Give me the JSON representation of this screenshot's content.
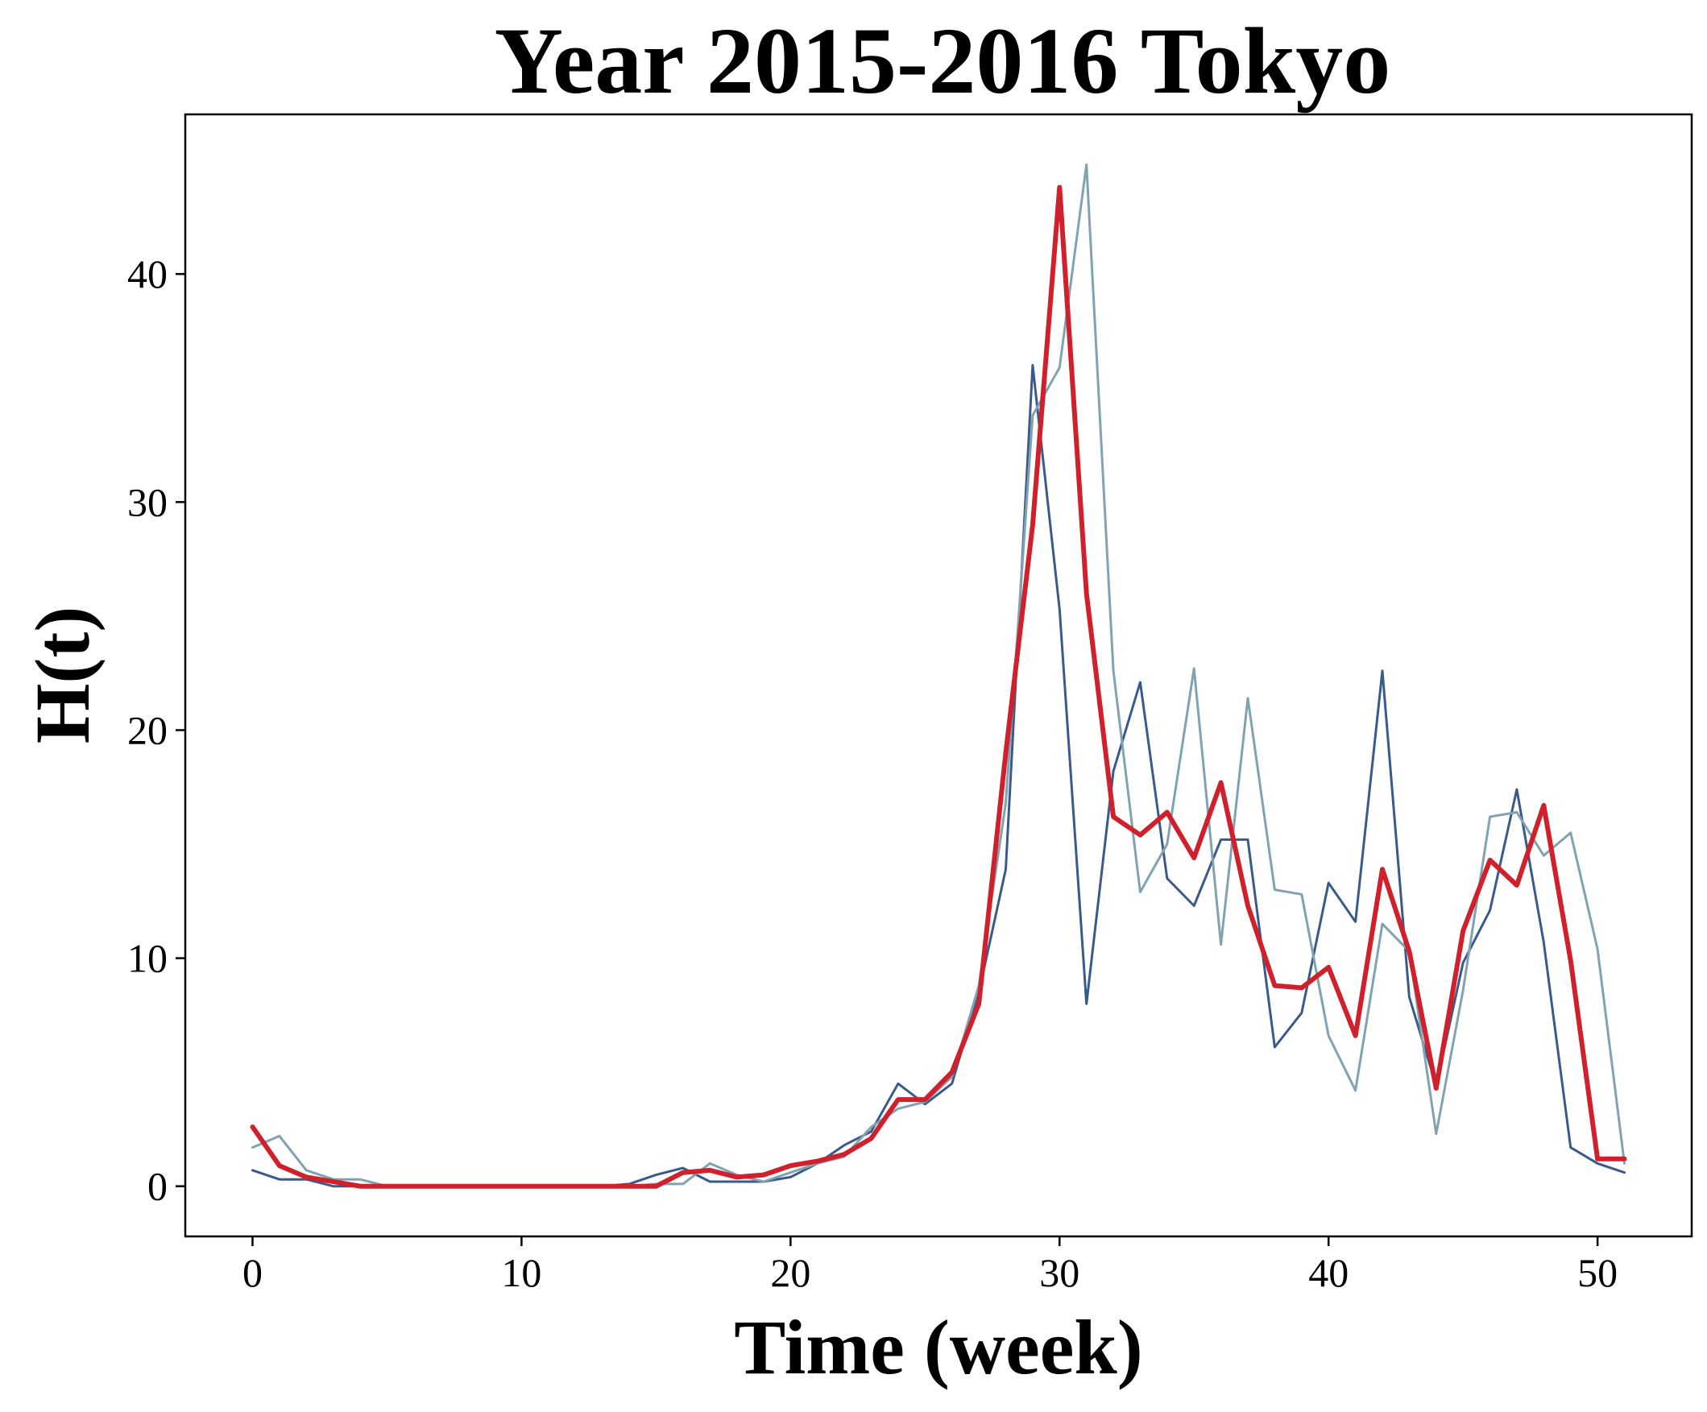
{
  "chart_data": {
    "type": "line",
    "title": "Year 2015-2016 Tokyo",
    "xlabel": "Time (week)",
    "ylabel": "H(t)",
    "xlim": [
      -2.5,
      53.5
    ],
    "ylim": [
      -2.2,
      47
    ],
    "xticks": [
      0,
      10,
      20,
      30,
      40,
      50
    ],
    "yticks": [
      0,
      10,
      20,
      30,
      40
    ],
    "grid": false,
    "x": [
      0,
      1,
      2,
      3,
      4,
      5,
      6,
      7,
      8,
      9,
      10,
      11,
      12,
      13,
      14,
      15,
      16,
      17,
      18,
      19,
      20,
      21,
      22,
      23,
      24,
      25,
      26,
      27,
      28,
      29,
      30,
      31,
      32,
      33,
      34,
      35,
      36,
      37,
      38,
      39,
      40,
      41,
      42,
      43,
      44,
      45,
      46,
      47,
      48,
      49,
      50,
      51
    ],
    "series": [
      {
        "color": "#3a5a8c",
        "stroke_width": 3,
        "values": [
          0.7,
          0.3,
          0.3,
          0.0,
          0.0,
          0.0,
          0.0,
          0.0,
          0.0,
          0.0,
          0.0,
          0.0,
          0.0,
          0.0,
          0.1,
          0.5,
          0.8,
          0.2,
          0.2,
          0.2,
          0.4,
          1.0,
          1.8,
          2.4,
          4.5,
          3.6,
          4.5,
          8.5,
          13.9,
          36.0,
          25.3,
          8.0,
          18.2,
          22.1,
          13.5,
          12.3,
          15.2,
          15.2,
          6.1,
          7.6,
          13.3,
          11.6,
          22.6,
          8.3,
          4.4,
          9.8,
          12.1,
          17.4,
          10.7,
          1.7,
          1.0,
          0.6
        ]
      },
      {
        "color": "#80a3b2",
        "stroke_width": 3,
        "values": [
          1.7,
          2.2,
          0.7,
          0.3,
          0.3,
          0.0,
          0.0,
          0.0,
          0.0,
          0.0,
          0.0,
          0.0,
          0.0,
          0.0,
          0.0,
          0.1,
          0.1,
          1.0,
          0.5,
          0.2,
          0.6,
          1.0,
          1.3,
          2.6,
          3.4,
          3.7,
          4.8,
          8.8,
          16.8,
          33.8,
          35.9,
          44.8,
          22.6,
          12.9,
          15.0,
          22.7,
          10.6,
          21.4,
          13.0,
          12.8,
          6.6,
          4.2,
          11.5,
          10.3,
          2.3,
          8.6,
          16.2,
          16.4,
          14.5,
          15.5,
          10.4,
          1.0
        ]
      },
      {
        "color": "#d0202c",
        "stroke_width": 6,
        "values": [
          2.6,
          0.9,
          0.4,
          0.2,
          0.0,
          0.0,
          0.0,
          0.0,
          0.0,
          0.0,
          0.0,
          0.0,
          0.0,
          0.0,
          0.0,
          0.0,
          0.6,
          0.7,
          0.4,
          0.5,
          0.9,
          1.1,
          1.4,
          2.1,
          3.8,
          3.8,
          5.0,
          8.0,
          19.0,
          29.0,
          43.8,
          26.0,
          16.2,
          15.4,
          16.4,
          14.4,
          17.7,
          12.3,
          8.8,
          8.7,
          9.6,
          6.6,
          13.9,
          10.3,
          4.3,
          11.2,
          14.3,
          13.2,
          16.7,
          9.9,
          1.2,
          1.2
        ]
      }
    ]
  }
}
